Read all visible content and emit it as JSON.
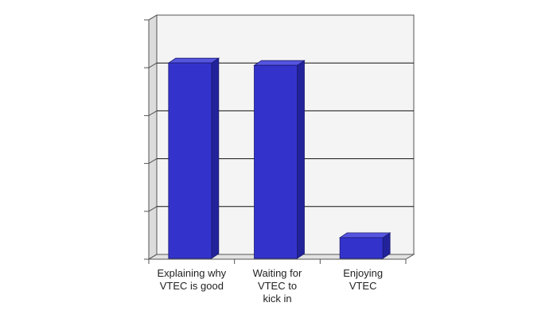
{
  "chart_data": {
    "type": "bar",
    "categories": [
      "Explaining why\nVTEC is good",
      "Waiting for\nVTEC to\nkick in",
      "Enjoying\nVTEC"
    ],
    "values": [
      82,
      81,
      9
    ],
    "ylim": [
      0,
      100
    ],
    "grid": true,
    "tick_labels_shown": false,
    "bar_color": "#3333cc",
    "bar_side_color": "#22229a",
    "bar_top_color": "#5555e0",
    "plot_background": "#f4f4f4",
    "grid_color": "#111111"
  }
}
